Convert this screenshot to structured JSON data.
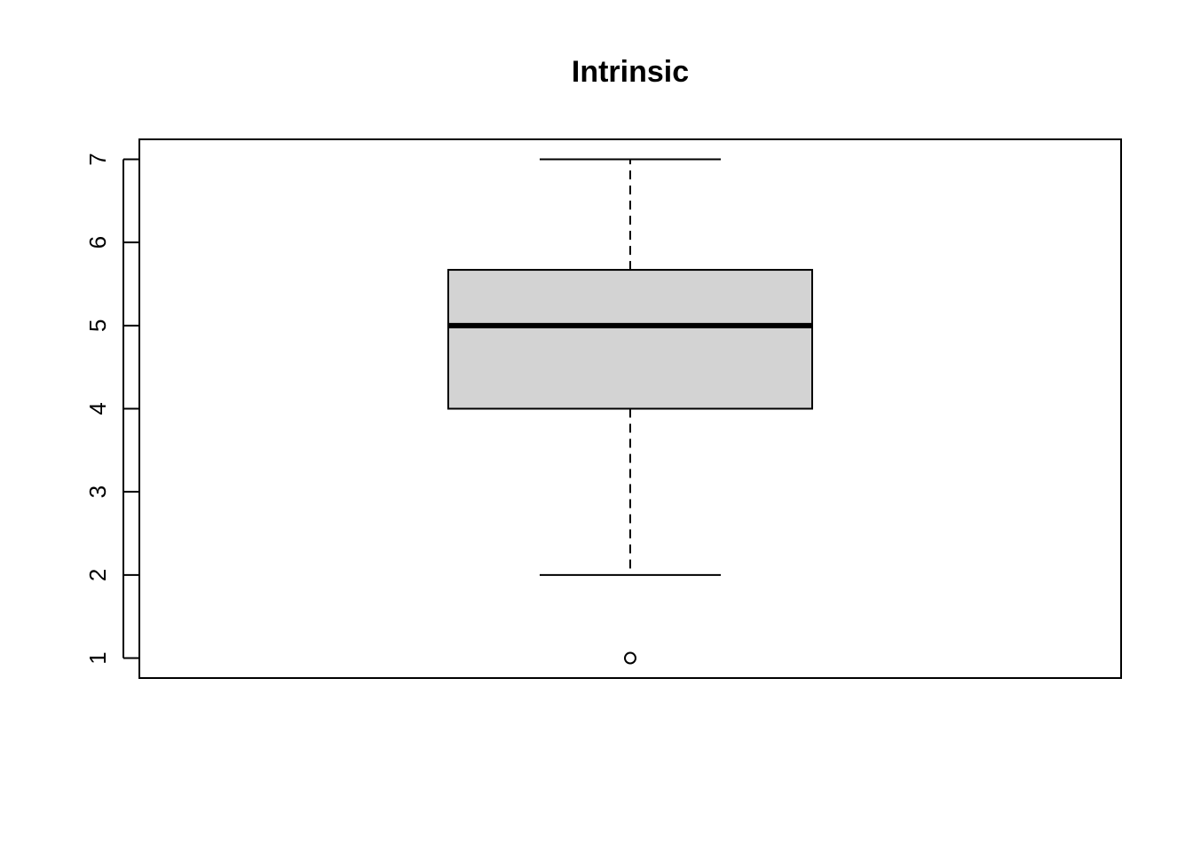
{
  "chart_data": {
    "type": "boxplot",
    "title": "Intrinsic",
    "xlabel": "",
    "ylabel": "",
    "ylim": [
      0.76,
      7.24
    ],
    "yticks": [
      1,
      2,
      3,
      4,
      5,
      6,
      7
    ],
    "ytick_labels": [
      "1",
      "2",
      "3",
      "4",
      "5",
      "6",
      "7"
    ],
    "grid": false,
    "box": {
      "whisker_low": 2,
      "q1": 4,
      "median": 5,
      "q3": 5.67,
      "whisker_high": 7,
      "outliers": [
        1
      ]
    },
    "colors": {
      "box_fill": "#d3d3d3",
      "stroke": "#000000",
      "background": "#ffffff"
    }
  }
}
